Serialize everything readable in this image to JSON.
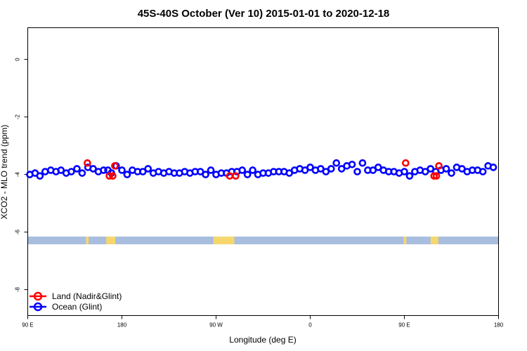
{
  "chart_data": {
    "type": "scatter",
    "title": "45S-40S October (Ver 10)   2015-01-01 to 2020-12-18",
    "xlabel": "Longitude (deg E)",
    "ylabel": "XCO2 - MLO trend (ppm)",
    "xlim": [
      90,
      450
    ],
    "ylim": [
      -8.9,
      1.1
    ],
    "x_ticks": [
      {
        "value": 90,
        "label": "90 E"
      },
      {
        "value": 162,
        "label": "180"
      },
      {
        "value": 234,
        "label": "90 W"
      },
      {
        "value": 306,
        "label": "0"
      },
      {
        "value": 378,
        "label": "90 E"
      },
      {
        "value": 450,
        "label": "180"
      }
    ],
    "y_ticks": [
      {
        "value": 0,
        "label": "0"
      },
      {
        "value": -2,
        "label": "-2"
      },
      {
        "value": -4,
        "label": "-4"
      },
      {
        "value": -6,
        "label": "-6"
      },
      {
        "value": -8,
        "label": "-8"
      }
    ],
    "legend": {
      "position": "bottom-left",
      "entries": [
        {
          "name": "Land (Nadir&Glint)",
          "color": "#ff0000"
        },
        {
          "name": "Ocean (Glint)",
          "color": "#0000ff"
        }
      ]
    },
    "series": [
      {
        "name": "Land (Nadir&Glint)",
        "color": "#ff0000",
        "marker": "open-circle",
        "points": [
          [
            135.6,
            -3.6
          ],
          [
            152.4,
            -4.05
          ],
          [
            155,
            -4.05
          ],
          [
            156.6,
            -3.7
          ],
          [
            244.4,
            -4.05
          ],
          [
            249,
            -4.05
          ],
          [
            379,
            -3.6
          ],
          [
            400.7,
            -4.05
          ],
          [
            402.5,
            -4.05
          ],
          [
            404.4,
            -3.7
          ]
        ]
      },
      {
        "name": "Ocean (Glint)",
        "color": "#0000ff",
        "marker": "open-circle",
        "points": [
          [
            91.6,
            -4
          ],
          [
            95.6,
            -3.95
          ],
          [
            99.3,
            -4.05
          ],
          [
            103.3,
            -3.9
          ],
          [
            107.6,
            -3.85
          ],
          [
            111.6,
            -3.9
          ],
          [
            115.4,
            -3.85
          ],
          [
            119.4,
            -3.95
          ],
          [
            123.3,
            -3.9
          ],
          [
            127.6,
            -3.8
          ],
          [
            131.6,
            -3.95
          ],
          [
            136,
            -3.75
          ],
          [
            140,
            -3.8
          ],
          [
            144,
            -3.9
          ],
          [
            148,
            -3.85
          ],
          [
            151.3,
            -3.85
          ],
          [
            154,
            -3.95
          ],
          [
            157.6,
            -3.7
          ],
          [
            162,
            -3.85
          ],
          [
            166,
            -4
          ],
          [
            170,
            -3.85
          ],
          [
            174,
            -3.9
          ],
          [
            178,
            -3.9
          ],
          [
            182,
            -3.8
          ],
          [
            186,
            -3.95
          ],
          [
            190,
            -3.9
          ],
          [
            194,
            -3.95
          ],
          [
            198,
            -3.9
          ],
          [
            202,
            -3.95
          ],
          [
            206,
            -3.95
          ],
          [
            210,
            -3.9
          ],
          [
            214,
            -3.95
          ],
          [
            218,
            -3.9
          ],
          [
            222,
            -3.9
          ],
          [
            226,
            -4
          ],
          [
            230,
            -3.85
          ],
          [
            234,
            -4
          ],
          [
            238,
            -3.95
          ],
          [
            242,
            -3.95
          ],
          [
            246,
            -3.9
          ],
          [
            250,
            -3.9
          ],
          [
            254,
            -3.85
          ],
          [
            258,
            -4
          ],
          [
            262,
            -3.85
          ],
          [
            266,
            -4
          ],
          [
            270,
            -3.95
          ],
          [
            274,
            -3.95
          ],
          [
            278,
            -3.9
          ],
          [
            282,
            -3.9
          ],
          [
            286,
            -3.9
          ],
          [
            290,
            -3.95
          ],
          [
            294,
            -3.85
          ],
          [
            298,
            -3.8
          ],
          [
            302,
            -3.85
          ],
          [
            306,
            -3.75
          ],
          [
            310,
            -3.85
          ],
          [
            314,
            -3.8
          ],
          [
            318,
            -3.9
          ],
          [
            322,
            -3.8
          ],
          [
            326,
            -3.6
          ],
          [
            330,
            -3.8
          ],
          [
            334,
            -3.7
          ],
          [
            338,
            -3.65
          ],
          [
            342,
            -3.9
          ],
          [
            346,
            -3.6
          ],
          [
            350,
            -3.85
          ],
          [
            354,
            -3.85
          ],
          [
            358,
            -3.75
          ],
          [
            362,
            -3.85
          ],
          [
            366,
            -3.9
          ],
          [
            370,
            -3.9
          ],
          [
            374,
            -3.95
          ],
          [
            378,
            -3.9
          ],
          [
            382,
            -4.05
          ],
          [
            386,
            -3.9
          ],
          [
            390,
            -3.85
          ],
          [
            394,
            -3.9
          ],
          [
            398,
            -3.8
          ],
          [
            402,
            -3.9
          ],
          [
            406,
            -3.85
          ],
          [
            410,
            -3.8
          ],
          [
            414,
            -3.95
          ],
          [
            418,
            -3.75
          ],
          [
            422,
            -3.8
          ],
          [
            426,
            -3.9
          ],
          [
            430,
            -3.85
          ],
          [
            434,
            -3.85
          ],
          [
            438,
            -3.9
          ],
          [
            442,
            -3.7
          ],
          [
            446,
            -3.75
          ]
        ]
      }
    ],
    "land_ocean_strip": {
      "ocean_color": "#a9bede",
      "land_color": "#f5d76e",
      "land_ranges": [
        [
          134.5,
          136.5
        ],
        [
          150,
          157
        ],
        [
          232,
          248
        ],
        [
          377.5,
          379.5
        ],
        [
          398,
          404
        ]
      ]
    }
  }
}
